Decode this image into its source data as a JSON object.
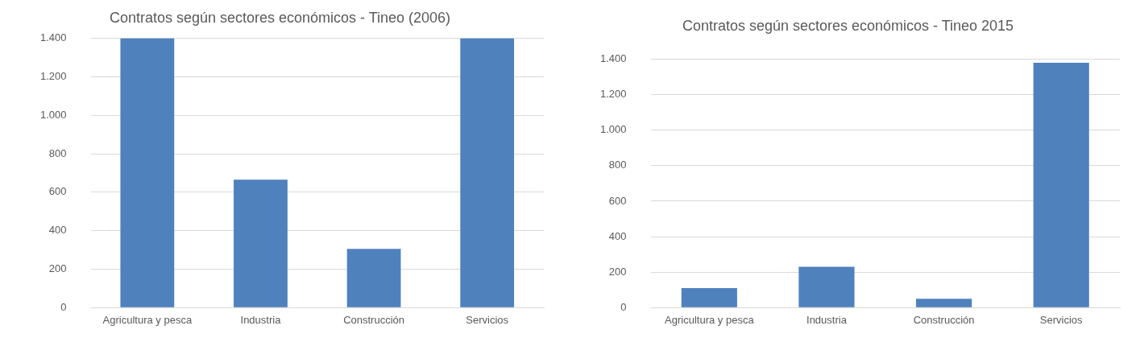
{
  "chart_data": [
    {
      "type": "bar",
      "title": "Contratos según sectores económicos - Tineo (2006)",
      "categories": [
        "Agricultura y pesca",
        "Industria",
        "Construcción",
        "Servicios"
      ],
      "values": [
        1400,
        665,
        305,
        1400
      ],
      "color": "#4f81bd",
      "ylim": [
        0,
        1400
      ],
      "yticks": [
        0,
        200,
        400,
        600,
        800,
        {
          "value": 1000,
          "label": "1.000"
        },
        {
          "value": 1200,
          "label": "1.200"
        },
        {
          "value": 1400,
          "label": "1.400"
        }
      ],
      "grid": "y",
      "legend": false
    },
    {
      "type": "bar",
      "title": "Contratos según sectores económicos - Tineo 2015",
      "categories": [
        "Agricultura y pesca",
        "Industria",
        "Construcción",
        "Servicios"
      ],
      "values": [
        110,
        230,
        50,
        1380
      ],
      "color": "#4f81bd",
      "ylim": [
        0,
        1400
      ],
      "yticks": [
        0,
        200,
        400,
        600,
        800,
        {
          "value": 1000,
          "label": "1.000"
        },
        {
          "value": 1200,
          "label": "1.200"
        },
        {
          "value": 1400,
          "label": "1.400"
        }
      ],
      "grid": "y",
      "legend": false
    }
  ]
}
